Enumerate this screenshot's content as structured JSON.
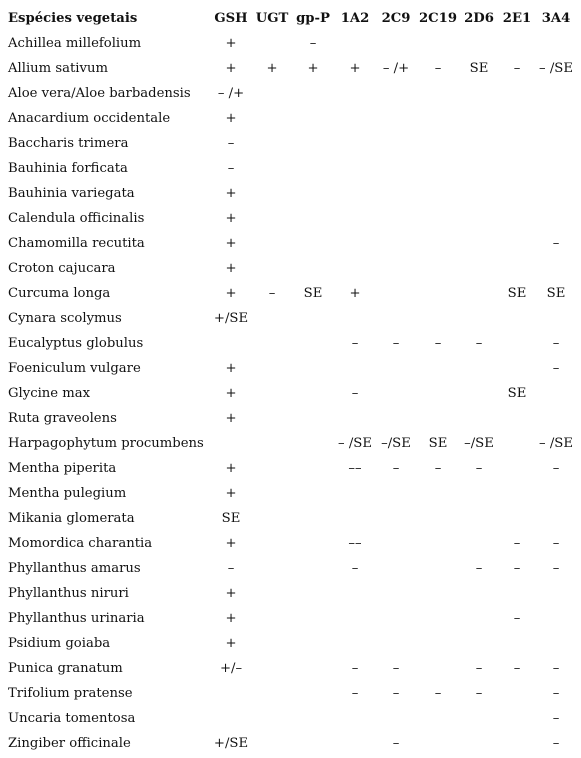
{
  "table": {
    "columns": [
      "Espécies vegetais",
      "GSH",
      "UGT",
      "gp-P",
      "1A2",
      "2C9",
      "2C19",
      "2D6",
      "2E1",
      "3A4"
    ],
    "rows": [
      [
        "Achillea millefolium",
        "+",
        "",
        "–",
        "",
        "",
        "",
        "",
        "",
        ""
      ],
      [
        "Allium sativum",
        "+",
        "+",
        "+",
        "+",
        "– /+",
        "–",
        "SE",
        "–",
        "– /SE"
      ],
      [
        "Aloe vera/Aloe barbadensis",
        "– /+",
        "",
        "",
        "",
        "",
        "",
        "",
        "",
        ""
      ],
      [
        "Anacardium occidentale",
        "+",
        "",
        "",
        "",
        "",
        "",
        "",
        "",
        ""
      ],
      [
        "Baccharis trimera",
        "–",
        "",
        "",
        "",
        "",
        "",
        "",
        "",
        ""
      ],
      [
        "Bauhinia forficata",
        "–",
        "",
        "",
        "",
        "",
        "",
        "",
        "",
        ""
      ],
      [
        "Bauhinia variegata",
        "+",
        "",
        "",
        "",
        "",
        "",
        "",
        "",
        ""
      ],
      [
        "Calendula officinalis",
        "+",
        "",
        "",
        "",
        "",
        "",
        "",
        "",
        ""
      ],
      [
        "Chamomilla recutita",
        "+",
        "",
        "",
        "",
        "",
        "",
        "",
        "",
        "–"
      ],
      [
        "Croton cajucara",
        "+",
        "",
        "",
        "",
        "",
        "",
        "",
        "",
        ""
      ],
      [
        "Curcuma longa",
        "+",
        "–",
        "SE",
        "+",
        "",
        "",
        "",
        "SE",
        "SE"
      ],
      [
        "Cynara scolymus",
        "+/SE",
        "",
        "",
        "",
        "",
        "",
        "",
        "",
        ""
      ],
      [
        "Eucalyptus globulus",
        "",
        "",
        "",
        "–",
        "–",
        "–",
        "–",
        "",
        "–"
      ],
      [
        "Foeniculum vulgare",
        "+",
        "",
        "",
        "",
        "",
        "",
        "",
        "",
        "–"
      ],
      [
        "Glycine max",
        "+",
        "",
        "",
        "–",
        "",
        "",
        "",
        "SE",
        ""
      ],
      [
        "Ruta graveolens",
        "+",
        "",
        "",
        "",
        "",
        "",
        "",
        "",
        ""
      ],
      [
        "Harpagophytum procumbens",
        "",
        "",
        "",
        "– /SE",
        "–/SE",
        "SE",
        "–/SE",
        "",
        "– /SE"
      ],
      [
        "Mentha piperita",
        "+",
        "",
        "",
        "––",
        "–",
        "–",
        "–",
        "",
        "–"
      ],
      [
        "Mentha pulegium",
        "+",
        "",
        "",
        "",
        "",
        "",
        "",
        "",
        ""
      ],
      [
        "Mikania glomerata",
        "SE",
        "",
        "",
        "",
        "",
        "",
        "",
        "",
        ""
      ],
      [
        "Momordica charantia",
        "+",
        "",
        "",
        "––",
        "",
        "",
        "",
        "–",
        "–"
      ],
      [
        "Phyllanthus amarus",
        "–",
        "",
        "",
        "–",
        "",
        "",
        "–",
        "–",
        "–"
      ],
      [
        "Phyllanthus niruri",
        "+",
        "",
        "",
        "",
        "",
        "",
        "",
        "",
        ""
      ],
      [
        "Phyllanthus urinaria",
        "+",
        "",
        "",
        "",
        "",
        "",
        "",
        "–",
        ""
      ],
      [
        "Psidium goiaba",
        "+",
        "",
        "",
        "",
        "",
        "",
        "",
        "",
        ""
      ],
      [
        "Punica granatum",
        "+/–",
        "",
        "",
        "–",
        "–",
        "",
        "–",
        "–",
        "–"
      ],
      [
        "Trifolium pratense",
        "",
        "",
        "",
        "–",
        "–",
        "–",
        "–",
        "",
        "–"
      ],
      [
        "Uncaria tomentosa",
        "",
        "",
        "",
        "",
        "",
        "",
        "",
        "",
        "–"
      ],
      [
        "Zingiber officinale",
        "+/SE",
        "",
        "",
        "",
        "–",
        "",
        "",
        "",
        "–"
      ]
    ]
  }
}
